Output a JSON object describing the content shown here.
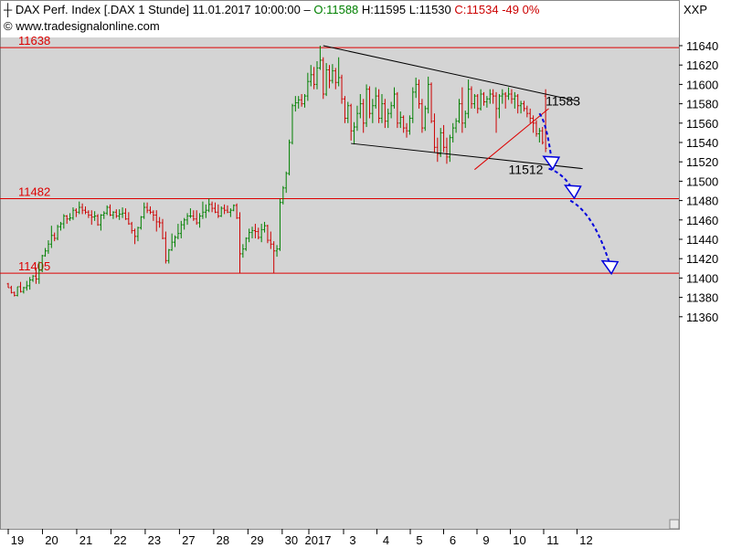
{
  "header": {
    "icon": "candle-icon",
    "instrument": "DAX Perf. Index",
    "symbol": "[.DAX",
    "period": "1 Stunde]",
    "datetime": "11.01.2017 10:00:00",
    "sep": "–",
    "open": "O:11588",
    "high": "H:11595",
    "low": "L:11530",
    "close": "C:11534",
    "change": "-49",
    "change_pct": "0%",
    "source": "© www.tradesignalonline.com",
    "corner": "XXP",
    "colors": {
      "open": "#008000",
      "close": "#cc0000",
      "up": "#008000",
      "down": "#cc0000",
      "level": "#dd0000",
      "forecast": "#0000dd"
    }
  },
  "chart_data": {
    "type": "candlestick",
    "x_labels": [
      "19",
      "20",
      "21",
      "22",
      "23",
      "27",
      "28",
      "29",
      "30",
      "2017",
      "3",
      "4",
      "5",
      "6",
      "9",
      "10",
      "11",
      "12"
    ],
    "y_ticks": [
      "11640",
      "11620",
      "11600",
      "11580",
      "11560",
      "11540",
      "11520",
      "11500",
      "11480",
      "11460",
      "11440",
      "11420",
      "11400",
      "11380",
      "11360"
    ],
    "ylim": [
      11355,
      11660
    ],
    "levels": [
      {
        "value": 11638,
        "label": "11638"
      },
      {
        "value": 11482,
        "label": "11482"
      },
      {
        "value": 11405,
        "label": "11405"
      }
    ],
    "annotations": [
      {
        "text": "11583",
        "bar": 174,
        "value": 11583
      },
      {
        "text": "11512",
        "bar": 162,
        "value": 11512
      }
    ],
    "trendlines": [
      {
        "from": [
          102,
          11640
        ],
        "to": [
          184,
          11583
        ]
      },
      {
        "from": [
          111,
          11539
        ],
        "to": [
          186,
          11513
        ]
      },
      {
        "from": [
          151,
          11512
        ],
        "to": [
          175,
          11575
        ]
      }
    ],
    "forecast_arrows": [
      {
        "from": [
          172,
          11570
        ],
        "to": [
          176,
          11520
        ]
      },
      {
        "from": [
          175,
          11513
        ],
        "to": [
          183,
          11490
        ]
      },
      {
        "from": [
          182,
          11480
        ],
        "to": [
          195,
          11412
        ]
      }
    ],
    "bar_count": 175,
    "ohlc": [
      [
        11394,
        11395,
        11390,
        11390
      ],
      [
        11390,
        11392,
        11384,
        11385
      ],
      [
        11385,
        11386,
        11381,
        11382
      ],
      [
        11382,
        11391,
        11381,
        11391
      ],
      [
        11391,
        11396,
        11385,
        11386
      ],
      [
        11386,
        11391,
        11384,
        11390
      ],
      [
        11390,
        11397,
        11387,
        11392
      ],
      [
        11392,
        11401,
        11388,
        11398
      ],
      [
        11398,
        11403,
        11396,
        11402
      ],
      [
        11402,
        11410,
        11394,
        11399
      ],
      [
        11399,
        11417,
        11394,
        11408
      ],
      [
        11408,
        11424,
        11406,
        11423
      ],
      [
        11423,
        11431,
        11422,
        11428
      ],
      [
        11428,
        11439,
        11425,
        11435
      ],
      [
        11435,
        11454,
        11431,
        11444
      ],
      [
        11444,
        11447,
        11438,
        11441
      ],
      [
        11441,
        11455,
        11439,
        11453
      ],
      [
        11453,
        11458,
        11449,
        11456
      ],
      [
        11456,
        11466,
        11451,
        11464
      ],
      [
        11464,
        11465,
        11456,
        11461
      ],
      [
        11461,
        11467,
        11459,
        11462
      ],
      [
        11462,
        11473,
        11460,
        11470
      ],
      [
        11470,
        11472,
        11463,
        11468
      ],
      [
        11468,
        11479,
        11466,
        11473
      ],
      [
        11473,
        11477,
        11466,
        11470
      ],
      [
        11470,
        11474,
        11466,
        11468
      ],
      [
        11468,
        11470,
        11462,
        11465
      ],
      [
        11465,
        11470,
        11455,
        11463
      ],
      [
        11463,
        11469,
        11459,
        11464
      ],
      [
        11464,
        11466,
        11454,
        11455
      ],
      [
        11455,
        11466,
        11449,
        11465
      ],
      [
        11465,
        11469,
        11461,
        11467
      ],
      [
        11467,
        11475,
        11465,
        11473
      ],
      [
        11473,
        11476,
        11464,
        11465
      ],
      [
        11465,
        11469,
        11461,
        11468
      ],
      [
        11468,
        11471,
        11462,
        11464
      ],
      [
        11464,
        11471,
        11460,
        11466
      ],
      [
        11466,
        11473,
        11462,
        11467
      ],
      [
        11467,
        11472,
        11460,
        11461
      ],
      [
        11461,
        11468,
        11455,
        11456
      ],
      [
        11456,
        11458,
        11446,
        11449
      ],
      [
        11449,
        11451,
        11435,
        11443
      ],
      [
        11443,
        11453,
        11438,
        11452
      ],
      [
        11452,
        11464,
        11450,
        11463
      ],
      [
        11463,
        11478,
        11461,
        11473
      ],
      [
        11473,
        11478,
        11467,
        11470
      ],
      [
        11470,
        11474,
        11466,
        11468
      ],
      [
        11468,
        11470,
        11459,
        11465
      ],
      [
        11465,
        11470,
        11448,
        11458
      ],
      [
        11458,
        11463,
        11452,
        11457
      ],
      [
        11457,
        11461,
        11440,
        11441
      ],
      [
        11441,
        11448,
        11415,
        11418
      ],
      [
        11418,
        11430,
        11415,
        11429
      ],
      [
        11429,
        11446,
        11428,
        11437
      ],
      [
        11437,
        11444,
        11432,
        11442
      ],
      [
        11442,
        11456,
        11440,
        11446
      ],
      [
        11446,
        11459,
        11441,
        11455
      ],
      [
        11455,
        11462,
        11450,
        11460
      ],
      [
        11460,
        11467,
        11455,
        11464
      ],
      [
        11464,
        11472,
        11462,
        11464
      ],
      [
        11464,
        11470,
        11459,
        11461
      ],
      [
        11461,
        11470,
        11455,
        11457
      ],
      [
        11457,
        11467,
        11452,
        11464
      ],
      [
        11464,
        11479,
        11461,
        11468
      ],
      [
        11468,
        11476,
        11462,
        11470
      ],
      [
        11470,
        11482,
        11468,
        11476
      ],
      [
        11476,
        11479,
        11468,
        11472
      ],
      [
        11472,
        11478,
        11467,
        11468
      ],
      [
        11468,
        11476,
        11462,
        11464
      ],
      [
        11464,
        11474,
        11463,
        11472
      ],
      [
        11472,
        11476,
        11466,
        11470
      ],
      [
        11470,
        11475,
        11467,
        11468
      ],
      [
        11468,
        11472,
        11463,
        11470
      ],
      [
        11470,
        11476,
        11469,
        11475
      ],
      [
        11475,
        11477,
        11461,
        11462
      ],
      [
        11462,
        11468,
        11405,
        11425
      ],
      [
        11425,
        11435,
        11421,
        11430
      ],
      [
        11430,
        11442,
        11428,
        11441
      ],
      [
        11441,
        11451,
        11437,
        11447
      ],
      [
        11447,
        11453,
        11441,
        11449
      ],
      [
        11449,
        11456,
        11441,
        11448
      ],
      [
        11448,
        11452,
        11440,
        11442
      ],
      [
        11442,
        11456,
        11437,
        11450
      ],
      [
        11450,
        11458,
        11447,
        11454
      ],
      [
        11454,
        11455,
        11436,
        11439
      ],
      [
        11439,
        11448,
        11430,
        11435
      ],
      [
        11435,
        11438,
        11405,
        11428
      ],
      [
        11428,
        11434,
        11422,
        11430
      ],
      [
        11430,
        11482,
        11428,
        11478
      ],
      [
        11478,
        11495,
        11476,
        11493
      ],
      [
        11493,
        11510,
        11488,
        11508
      ],
      [
        11508,
        11543,
        11506,
        11540
      ],
      [
        11540,
        11580,
        11538,
        11578
      ],
      [
        11578,
        11588,
        11572,
        11581
      ],
      [
        11581,
        11588,
        11575,
        11584
      ],
      [
        11584,
        11590,
        11577,
        11580
      ],
      [
        11580,
        11590,
        11576,
        11588
      ],
      [
        11588,
        11612,
        11583,
        11603
      ],
      [
        11603,
        11620,
        11598,
        11610
      ],
      [
        11610,
        11618,
        11595,
        11600
      ],
      [
        11600,
        11624,
        11595,
        11617
      ],
      [
        11617,
        11640,
        11615,
        11625
      ],
      [
        11625,
        11628,
        11585,
        11590
      ],
      [
        11590,
        11622,
        11588,
        11615
      ],
      [
        11615,
        11620,
        11596,
        11604
      ],
      [
        11604,
        11621,
        11601,
        11614
      ],
      [
        11614,
        11617,
        11595,
        11602
      ],
      [
        11602,
        11628,
        11598,
        11607
      ],
      [
        11607,
        11610,
        11580,
        11585
      ],
      [
        11585,
        11588,
        11560,
        11565
      ],
      [
        11565,
        11582,
        11560,
        11578
      ],
      [
        11578,
        11580,
        11542,
        11552
      ],
      [
        11552,
        11561,
        11538,
        11556
      ],
      [
        11556,
        11578,
        11552,
        11570
      ],
      [
        11570,
        11590,
        11565,
        11580
      ],
      [
        11580,
        11585,
        11550,
        11560
      ],
      [
        11560,
        11600,
        11556,
        11595
      ],
      [
        11595,
        11598,
        11565,
        11570
      ],
      [
        11570,
        11585,
        11560,
        11578
      ],
      [
        11578,
        11597,
        11575,
        11588
      ],
      [
        11588,
        11595,
        11560,
        11565
      ],
      [
        11565,
        11590,
        11560,
        11580
      ],
      [
        11580,
        11585,
        11555,
        11562
      ],
      [
        11562,
        11575,
        11555,
        11570
      ],
      [
        11570,
        11582,
        11565,
        11578
      ],
      [
        11578,
        11597,
        11575,
        11590
      ],
      [
        11590,
        11592,
        11555,
        11560
      ],
      [
        11560,
        11572,
        11555,
        11566
      ],
      [
        11566,
        11568,
        11550,
        11555
      ],
      [
        11555,
        11560,
        11545,
        11552
      ],
      [
        11552,
        11568,
        11548,
        11565
      ],
      [
        11565,
        11597,
        11560,
        11592
      ],
      [
        11592,
        11607,
        11586,
        11600
      ],
      [
        11600,
        11605,
        11575,
        11580
      ],
      [
        11580,
        11585,
        11550,
        11555
      ],
      [
        11555,
        11578,
        11552,
        11575
      ],
      [
        11575,
        11608,
        11570,
        11600
      ],
      [
        11600,
        11602,
        11560,
        11562
      ],
      [
        11562,
        11570,
        11530,
        11535
      ],
      [
        11535,
        11545,
        11520,
        11528
      ],
      [
        11528,
        11555,
        11525,
        11550
      ],
      [
        11550,
        11558,
        11530,
        11535
      ],
      [
        11535,
        11545,
        11518,
        11525
      ],
      [
        11525,
        11548,
        11520,
        11545
      ],
      [
        11545,
        11560,
        11540,
        11555
      ],
      [
        11555,
        11565,
        11550,
        11562
      ],
      [
        11562,
        11585,
        11560,
        11580
      ],
      [
        11580,
        11597,
        11550,
        11560
      ],
      [
        11560,
        11573,
        11555,
        11570
      ],
      [
        11570,
        11605,
        11565,
        11595
      ],
      [
        11595,
        11598,
        11575,
        11580
      ],
      [
        11580,
        11590,
        11575,
        11588
      ],
      [
        11588,
        11590,
        11570,
        11575
      ],
      [
        11575,
        11595,
        11573,
        11590
      ],
      [
        11590,
        11592,
        11578,
        11582
      ],
      [
        11582,
        11588,
        11576,
        11585
      ],
      [
        11585,
        11595,
        11580,
        11590
      ],
      [
        11590,
        11595,
        11580,
        11588
      ],
      [
        11588,
        11592,
        11550,
        11575
      ],
      [
        11575,
        11590,
        11565,
        11588
      ],
      [
        11588,
        11595,
        11580,
        11590
      ],
      [
        11590,
        11592,
        11575,
        11588
      ],
      [
        11588,
        11597,
        11584,
        11590
      ],
      [
        11590,
        11595,
        11580,
        11585
      ],
      [
        11585,
        11592,
        11575,
        11588
      ],
      [
        11588,
        11590,
        11570,
        11578
      ],
      [
        11578,
        11583,
        11570,
        11580
      ],
      [
        11580,
        11583,
        11572,
        11575
      ],
      [
        11575,
        11578,
        11566,
        11570
      ],
      [
        11570,
        11575,
        11560,
        11565
      ],
      [
        11565,
        11568,
        11550,
        11560
      ],
      [
        11560,
        11563,
        11546,
        11549
      ],
      [
        11549,
        11555,
        11540,
        11552
      ],
      [
        11552,
        11556,
        11538,
        11540
      ],
      [
        11588,
        11595,
        11530,
        11534
      ]
    ]
  }
}
